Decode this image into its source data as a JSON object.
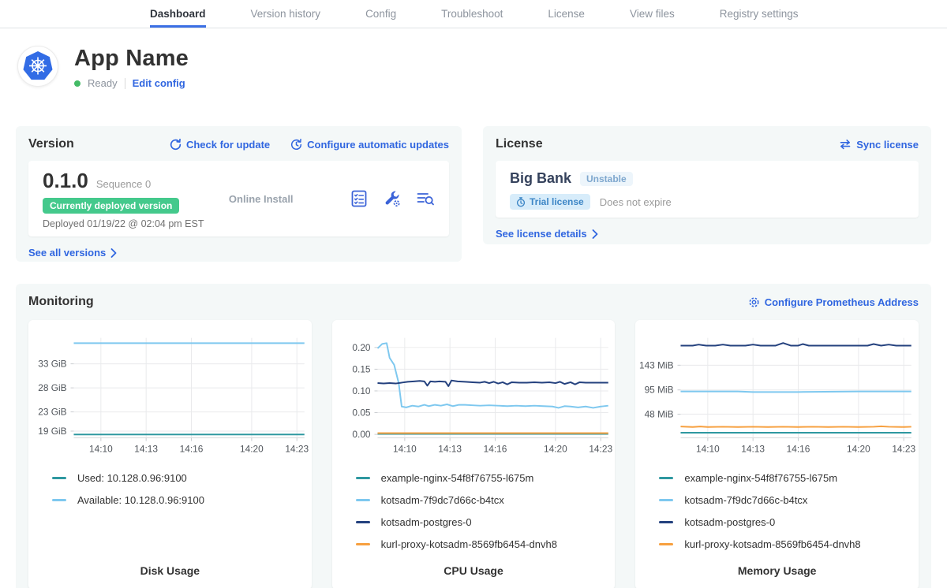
{
  "nav": {
    "tabs": [
      {
        "label": "Dashboard",
        "active": true
      },
      {
        "label": "Version history",
        "active": false
      },
      {
        "label": "Config",
        "active": false
      },
      {
        "label": "Troubleshoot",
        "active": false
      },
      {
        "label": "License",
        "active": false
      },
      {
        "label": "View files",
        "active": false
      },
      {
        "label": "Registry settings",
        "active": false
      }
    ]
  },
  "app": {
    "title": "App Name",
    "status": "Ready",
    "edit_config": "Edit config",
    "logo": "kubernetes-logo",
    "brand_blue": "#326CE5"
  },
  "version": {
    "header": "Version",
    "check_update": "Check for update",
    "configure_updates": "Configure automatic updates",
    "number": "0.1.0",
    "sequence": "Sequence 0",
    "deployed_badge": "Currently deployed version",
    "install_type": "Online Install",
    "deployed_at": "Deployed 01/19/22 @ 02:04 pm EST",
    "see_all": "See all versions",
    "icons": [
      "preflight-checks-icon",
      "config-wrench-icon",
      "deploy-logs-icon"
    ],
    "badge_green": "#44c98c"
  },
  "license": {
    "header": "License",
    "sync": "Sync license",
    "name": "Big Bank",
    "channel_badge": "Unstable",
    "trial_badge": "Trial license",
    "expiry": "Does not expire",
    "see_details": "See license details"
  },
  "monitoring": {
    "header": "Monitoring",
    "configure": "Configure Prometheus Address",
    "link_blue": "#3066e0",
    "charts": [
      {
        "title": "Disk Usage",
        "type": "line",
        "x_domain": [
          8.2,
          23.5
        ],
        "x_ticks": [
          {
            "v": 10,
            "label": "14:10"
          },
          {
            "v": 13,
            "label": "14:13"
          },
          {
            "v": 16,
            "label": "14:16"
          },
          {
            "v": 20,
            "label": "14:20"
          },
          {
            "v": 23,
            "label": "14:23"
          }
        ],
        "y_domain": [
          17.6,
          38.4
        ],
        "y_ticks": [
          {
            "v": 33,
            "label": "33 GiB"
          },
          {
            "v": 28,
            "label": "28 GiB"
          },
          {
            "v": 23,
            "label": "23 GiB"
          },
          {
            "v": 19,
            "label": "19 GiB"
          }
        ],
        "series": [
          {
            "name": "Used: 10.128.0.96:9100",
            "color": "#2e98a0",
            "points": [
              [
                8.2,
                18.3
              ],
              [
                23.5,
                18.3
              ]
            ]
          },
          {
            "name": "Available: 10.128.0.96:9100",
            "color": "#7ec8ef",
            "points": [
              [
                8.2,
                37.3
              ],
              [
                23.5,
                37.3
              ]
            ]
          }
        ]
      },
      {
        "title": "CPU Usage",
        "type": "line",
        "x_domain": [
          8.2,
          23.5
        ],
        "x_ticks": [
          {
            "v": 10,
            "label": "14:10"
          },
          {
            "v": 13,
            "label": "14:13"
          },
          {
            "v": 16,
            "label": "14:16"
          },
          {
            "v": 20,
            "label": "14:20"
          },
          {
            "v": 23,
            "label": "14:23"
          }
        ],
        "y_domain": [
          -0.008,
          0.222
        ],
        "y_ticks": [
          {
            "v": 0.2,
            "label": "0.20"
          },
          {
            "v": 0.15,
            "label": "0.15"
          },
          {
            "v": 0.1,
            "label": "0.10"
          },
          {
            "v": 0.05,
            "label": "0.05"
          },
          {
            "v": 0.0,
            "label": "0.00"
          }
        ],
        "series": [
          {
            "name": "example-nginx-54f8f76755-l675m",
            "color": "#2e98a0",
            "points": [
              [
                8.2,
                0.001
              ],
              [
                23.5,
                0.001
              ]
            ]
          },
          {
            "name": "kotsadm-7f9dc7d66c-b4tcx",
            "color": "#7ec8ef",
            "points": [
              [
                8.2,
                0.198
              ],
              [
                8.5,
                0.208
              ],
              [
                8.8,
                0.21
              ],
              [
                9.0,
                0.176
              ],
              [
                9.3,
                0.16
              ],
              [
                9.6,
                0.118
              ],
              [
                9.8,
                0.064
              ],
              [
                10.1,
                0.062
              ],
              [
                10.5,
                0.066
              ],
              [
                10.9,
                0.064
              ],
              [
                11.3,
                0.068
              ],
              [
                11.6,
                0.065
              ],
              [
                12.0,
                0.068
              ],
              [
                12.4,
                0.066
              ],
              [
                12.8,
                0.069
              ],
              [
                13.2,
                0.065
              ],
              [
                13.6,
                0.068
              ],
              [
                14.0,
                0.068
              ],
              [
                14.5,
                0.067
              ],
              [
                15.0,
                0.066
              ],
              [
                15.6,
                0.067
              ],
              [
                16.2,
                0.066
              ],
              [
                16.8,
                0.065
              ],
              [
                17.4,
                0.066
              ],
              [
                18.0,
                0.065
              ],
              [
                18.6,
                0.066
              ],
              [
                19.2,
                0.065
              ],
              [
                19.8,
                0.064
              ],
              [
                20.2,
                0.061
              ],
              [
                20.6,
                0.065
              ],
              [
                21.0,
                0.064
              ],
              [
                21.5,
                0.062
              ],
              [
                22.0,
                0.064
              ],
              [
                22.5,
                0.061
              ],
              [
                23.0,
                0.064
              ],
              [
                23.5,
                0.066
              ]
            ]
          },
          {
            "name": "kotsadm-postgres-0",
            "color": "#24417e",
            "points": [
              [
                8.2,
                0.118
              ],
              [
                8.6,
                0.117
              ],
              [
                9.0,
                0.118
              ],
              [
                9.4,
                0.117
              ],
              [
                9.8,
                0.119
              ],
              [
                10.2,
                0.121
              ],
              [
                10.6,
                0.122
              ],
              [
                11.0,
                0.123
              ],
              [
                11.3,
                0.122
              ],
              [
                11.5,
                0.112
              ],
              [
                11.7,
                0.122
              ],
              [
                12.0,
                0.121
              ],
              [
                12.3,
                0.122
              ],
              [
                12.7,
                0.121
              ],
              [
                12.9,
                0.111
              ],
              [
                13.1,
                0.124
              ],
              [
                13.5,
                0.122
              ],
              [
                14.0,
                0.121
              ],
              [
                14.5,
                0.12
              ],
              [
                15.0,
                0.119
              ],
              [
                15.3,
                0.121
              ],
              [
                15.6,
                0.118
              ],
              [
                15.9,
                0.121
              ],
              [
                16.2,
                0.117
              ],
              [
                16.5,
                0.12
              ],
              [
                16.8,
                0.115
              ],
              [
                17.1,
                0.12
              ],
              [
                17.6,
                0.119
              ],
              [
                18.1,
                0.119
              ],
              [
                18.6,
                0.12
              ],
              [
                19.1,
                0.119
              ],
              [
                19.6,
                0.12
              ],
              [
                20.0,
                0.118
              ],
              [
                20.3,
                0.121
              ],
              [
                20.6,
                0.116
              ],
              [
                21.0,
                0.12
              ],
              [
                21.3,
                0.115
              ],
              [
                21.6,
                0.12
              ],
              [
                22.0,
                0.119
              ],
              [
                22.5,
                0.119
              ],
              [
                23.0,
                0.119
              ],
              [
                23.5,
                0.119
              ]
            ]
          },
          {
            "name": "kurl-proxy-kotsadm-8569fb6454-dnvh8",
            "color": "#f7a03f",
            "points": [
              [
                8.2,
                0.003
              ],
              [
                23.5,
                0.003
              ]
            ]
          }
        ]
      },
      {
        "title": "Memory Usage",
        "type": "line",
        "x_domain": [
          8.2,
          23.5
        ],
        "x_ticks": [
          {
            "v": 10,
            "label": "14:10"
          },
          {
            "v": 13,
            "label": "14:13"
          },
          {
            "v": 16,
            "label": "14:16"
          },
          {
            "v": 20,
            "label": "14:20"
          },
          {
            "v": 23,
            "label": "14:23"
          }
        ],
        "y_domain": [
          2,
          196
        ],
        "y_ticks": [
          {
            "v": 143,
            "label": "143 MiB"
          },
          {
            "v": 95,
            "label": "95 MiB"
          },
          {
            "v": 48,
            "label": "48 MiB"
          }
        ],
        "series": [
          {
            "name": "example-nginx-54f8f76755-l675m",
            "color": "#2e98a0",
            "points": [
              [
                8.2,
                12
              ],
              [
                23.5,
                12
              ]
            ]
          },
          {
            "name": "kotsadm-7f9dc7d66c-b4tcx",
            "color": "#7ec8ef",
            "points": [
              [
                8.2,
                92
              ],
              [
                12.0,
                92
              ],
              [
                13.0,
                91
              ],
              [
                16.0,
                91
              ],
              [
                20.0,
                92
              ],
              [
                23.5,
                92
              ]
            ]
          },
          {
            "name": "kotsadm-postgres-0",
            "color": "#24417e",
            "points": [
              [
                8.2,
                181
              ],
              [
                9.0,
                181
              ],
              [
                9.4,
                183
              ],
              [
                9.9,
                181
              ],
              [
                10.5,
                181
              ],
              [
                11.0,
                183
              ],
              [
                11.5,
                181
              ],
              [
                12.5,
                181
              ],
              [
                13.0,
                183
              ],
              [
                13.5,
                181
              ],
              [
                14.5,
                181
              ],
              [
                15.0,
                186
              ],
              [
                15.5,
                181
              ],
              [
                16.0,
                181
              ],
              [
                16.3,
                184
              ],
              [
                16.7,
                181
              ],
              [
                18.0,
                181
              ],
              [
                19.0,
                181
              ],
              [
                20.0,
                181
              ],
              [
                20.6,
                181
              ],
              [
                21.0,
                184
              ],
              [
                21.5,
                181
              ],
              [
                22.0,
                183
              ],
              [
                22.5,
                181
              ],
              [
                23.5,
                181
              ]
            ]
          },
          {
            "name": "kurl-proxy-kotsadm-8569fb6454-dnvh8",
            "color": "#f7a03f",
            "points": [
              [
                8.2,
                24
              ],
              [
                9.0,
                23
              ],
              [
                9.5,
                24
              ],
              [
                10.0,
                23
              ],
              [
                11.0,
                23.5
              ],
              [
                12.0,
                23
              ],
              [
                13.0,
                23.5
              ],
              [
                14.0,
                23
              ],
              [
                15.0,
                23.5
              ],
              [
                16.0,
                23
              ],
              [
                17.0,
                23.5
              ],
              [
                18.0,
                23
              ],
              [
                19.0,
                23.5
              ],
              [
                20.0,
                23
              ],
              [
                21.0,
                23.5
              ],
              [
                21.5,
                24.5
              ],
              [
                22.0,
                23.5
              ],
              [
                23.0,
                23
              ],
              [
                23.5,
                23.5
              ]
            ]
          }
        ]
      }
    ]
  }
}
